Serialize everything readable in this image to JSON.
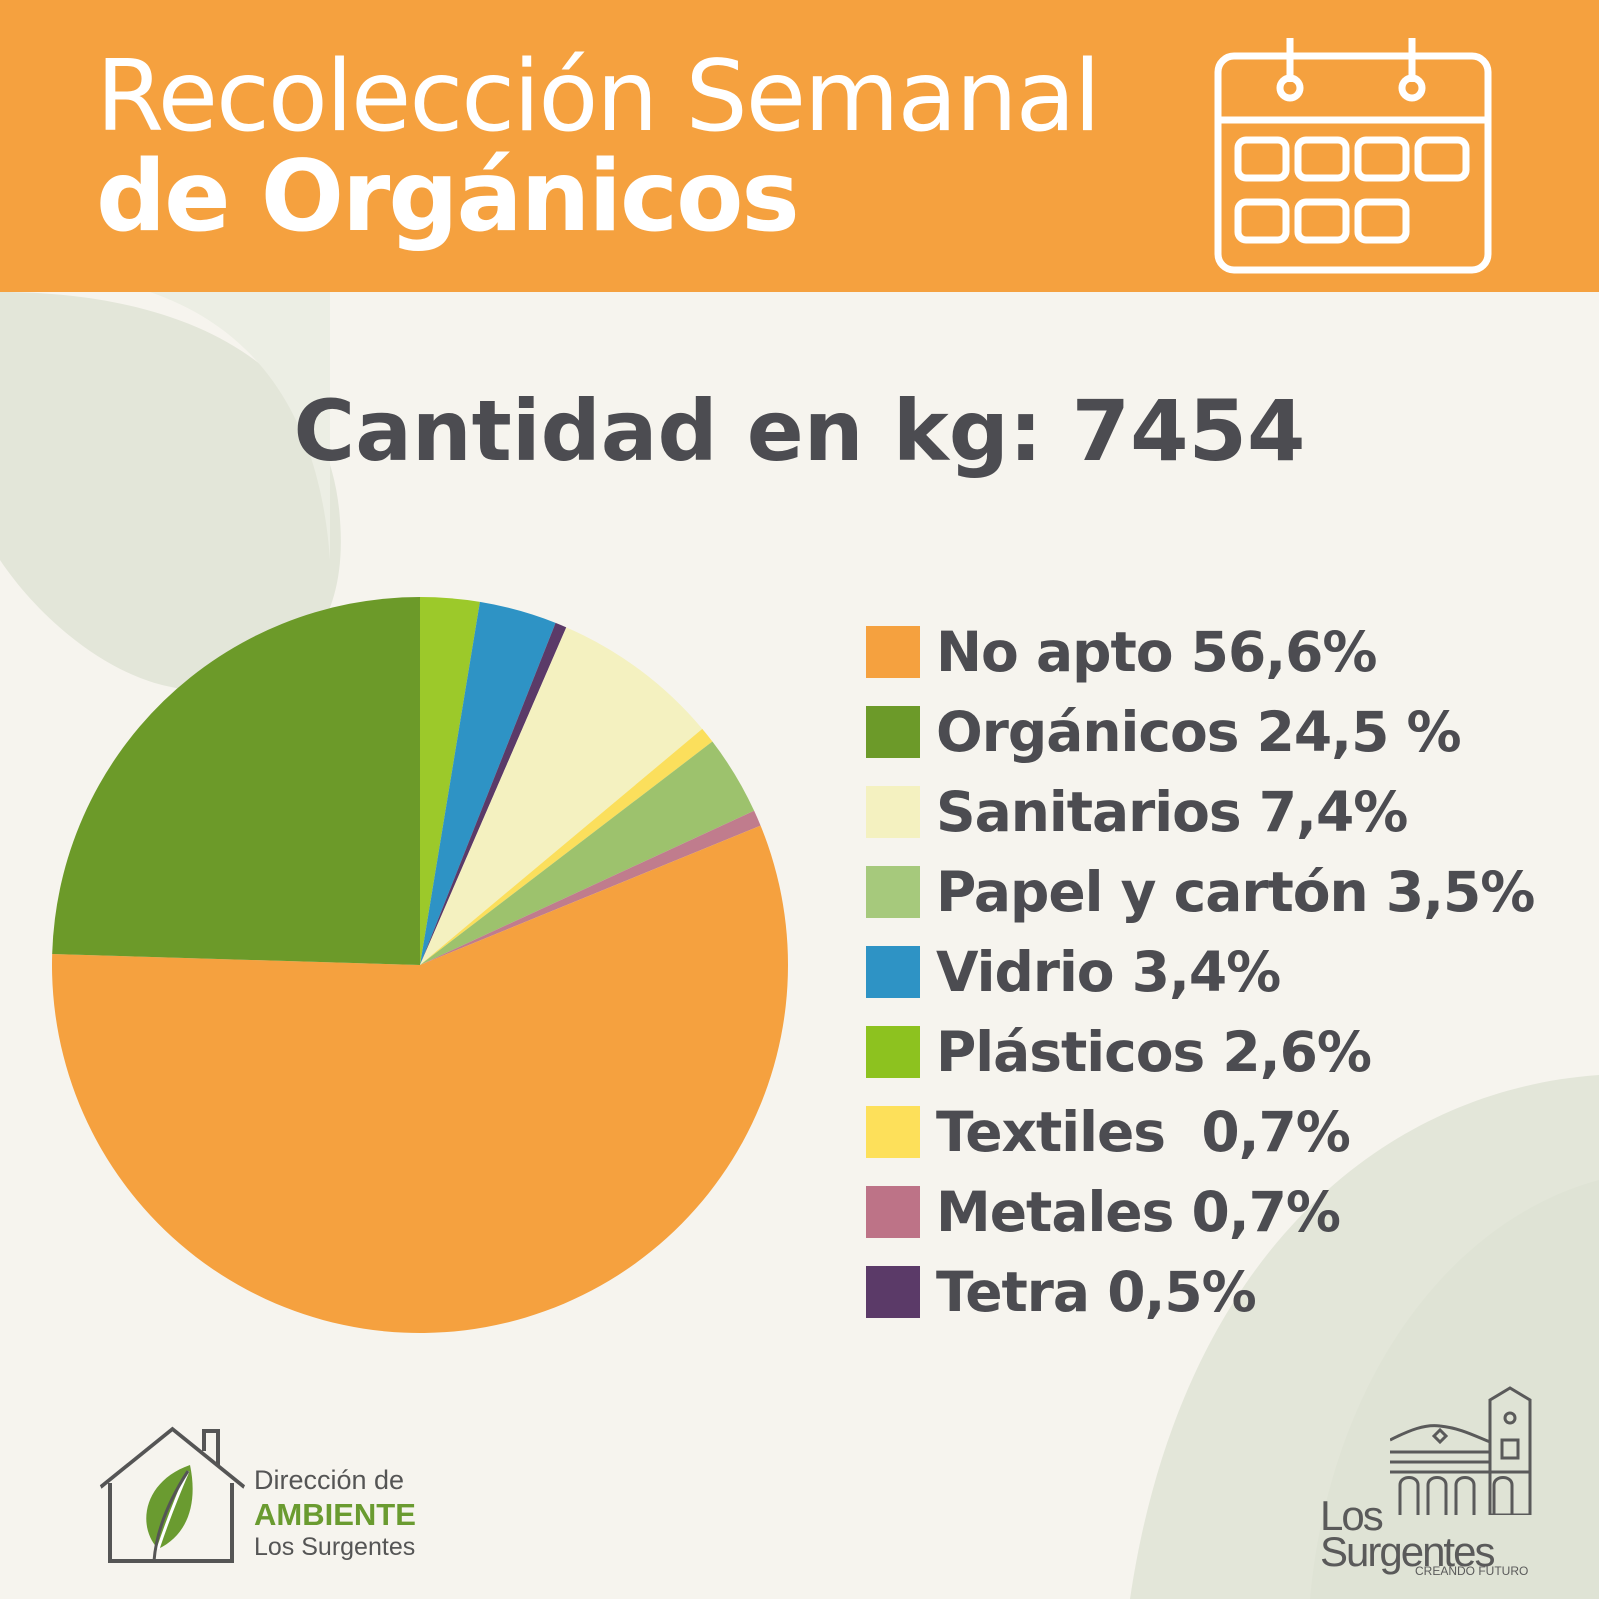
{
  "header": {
    "title_line1": "Recolección Semanal",
    "title_line2": "de Orgánicos",
    "icon": "calendar-icon"
  },
  "total_label": "Cantidad en kg: 7454",
  "chart_data": {
    "type": "pie",
    "title": "",
    "start": "top",
    "direction": "clockwise",
    "slices": [
      {
        "label": "Plásticos 2,6%",
        "value": 2.6,
        "color": "#9cc92a"
      },
      {
        "label": "Vidrio 3,4%",
        "value": 3.4,
        "color": "#2e93c5"
      },
      {
        "label": "Tetra 0,5%",
        "value": 0.5,
        "color": "#5b3a68"
      },
      {
        "label": "Sanitarios 7,4%",
        "value": 7.4,
        "color": "#f4f1c0"
      },
      {
        "label": "Textiles 0,7%",
        "value": 0.7,
        "color": "#fbdf5c"
      },
      {
        "label": "Papel y cartón 3,5%",
        "value": 3.5,
        "color": "#9dc26d"
      },
      {
        "label": "Metales 0,7%",
        "value": 0.7,
        "color": "#c07c8d"
      },
      {
        "label": "No apto 56,6%",
        "value": 56.6,
        "color": "#f5a13f"
      },
      {
        "label": "Orgánicos 24,5 %",
        "value": 24.5,
        "color": "#6c9a29"
      }
    ]
  },
  "legend": [
    {
      "label": "No apto 56,6%",
      "color": "#f5a13f"
    },
    {
      "label": "Orgánicos 24,5 %",
      "color": "#6c9a29"
    },
    {
      "label": "Sanitarios 7,4%",
      "color": "#f4f1c0"
    },
    {
      "label": "Papel y cartón 3,5%",
      "color": "#a6c97c"
    },
    {
      "label": "Vidrio 3,4%",
      "color": "#2e93c5"
    },
    {
      "label": "Plásticos 2,6%",
      "color": "#8dc21f"
    },
    {
      "label": "Textiles  0,7%",
      "color": "#fde05a"
    },
    {
      "label": "Metales 0,7%",
      "color": "#bd7387"
    },
    {
      "label": "Tetra 0,5%",
      "color": "#5b3a68"
    }
  ],
  "logo_ambiente": {
    "line1": "Dirección de",
    "line2": "AMBIENTE",
    "line3": "Los Surgentes"
  },
  "logo_surgentes": {
    "line1": "Los",
    "line2": "Surgentes",
    "tagline": "CREANDO FUTURO"
  }
}
